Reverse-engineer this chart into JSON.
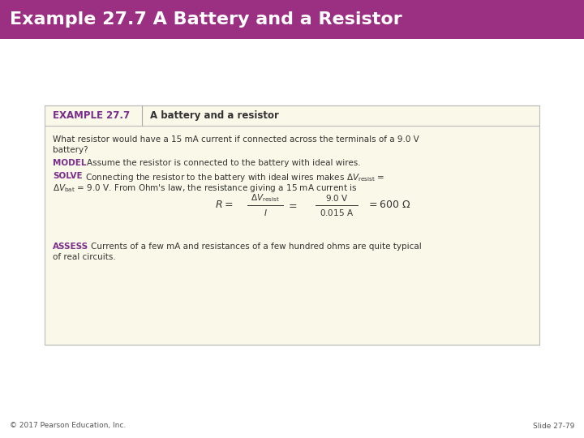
{
  "title": "Example 27.7 A Battery and a Resistor",
  "title_bg_color": "#9b3082",
  "title_text_color": "#ffffff",
  "slide_bg_color": "#ffffff",
  "box_bg_color": "#faf8e8",
  "box_border_color": "#bbbbbb",
  "example_label": "EXAMPLE 27.7",
  "example_label_color": "#7b2d8b",
  "example_title": "A battery and a resistor",
  "footer_left": "© 2017 Pearson Education, Inc.",
  "footer_right": "Slide 27-79",
  "label_color": "#7b2d8b",
  "body_text_color": "#333333"
}
